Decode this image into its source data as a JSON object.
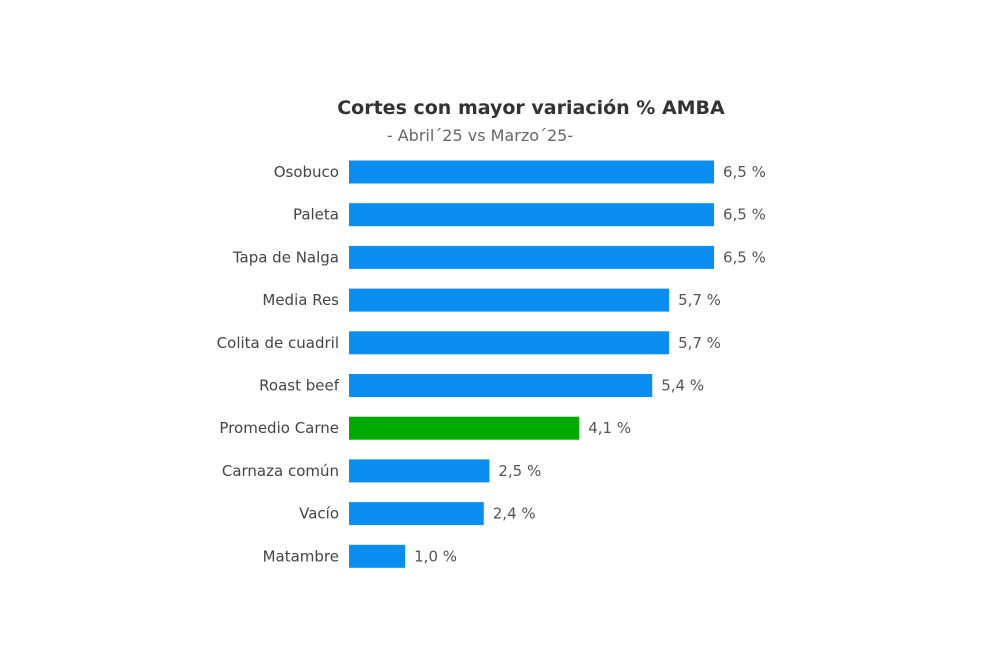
{
  "chart_data": {
    "type": "bar",
    "orientation": "horizontal",
    "title": "Cortes con mayor variación % AMBA",
    "subtitle": "- Abril´25 vs Marzo´25-",
    "categories": [
      "Osobuco",
      "Paleta",
      "Tapa de Nalga",
      "Media Res",
      "Colita de cuadril",
      "Roast beef",
      "Promedio Carne",
      "Carnaza común",
      "Vacío",
      "Matambre"
    ],
    "values": [
      6.5,
      6.5,
      6.5,
      5.7,
      5.7,
      5.4,
      4.1,
      2.5,
      2.4,
      1.0
    ],
    "labels": [
      "6,5 %",
      "6,5 %",
      "6,5 %",
      "5,7 %",
      "5,7 %",
      "5,4 %",
      "4,1 %",
      "2,5 %",
      "2,4 %",
      "1,0 %"
    ],
    "highlight_category": "Promedio Carne",
    "colors": {
      "bar": "#0a8ef2",
      "highlight": "#00aa00"
    },
    "xlim": [
      0,
      6.5
    ],
    "grid": false,
    "axes_visible": false
  }
}
